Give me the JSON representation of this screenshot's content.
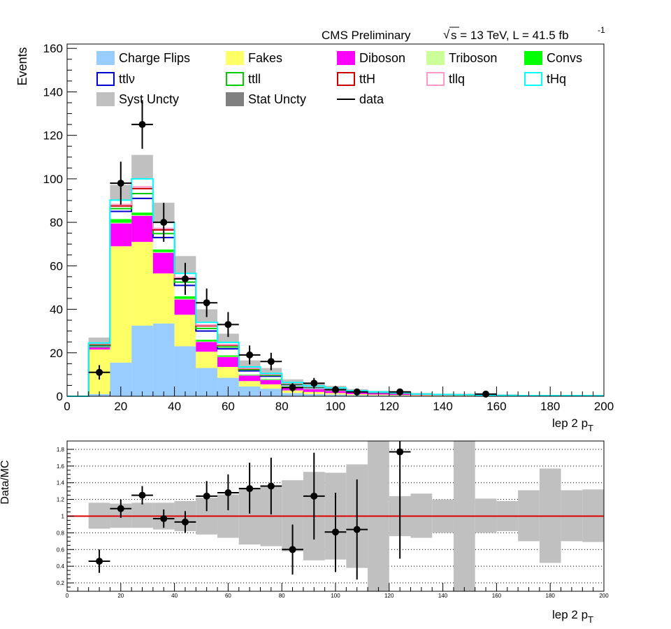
{
  "header": {
    "experiment": "CMS Preliminary",
    "sqrt_symbol": "√",
    "energy_text": "s = 13 TeV, L = 41.5 fb",
    "lumi_exponent": "-1"
  },
  "chart_data": [
    {
      "type": "stacked-histogram",
      "ylabel": "Events",
      "xlabel_main": "lep 2 p",
      "xlabel_sub": "T",
      "xlim": [
        0,
        200
      ],
      "ylim": [
        0,
        162
      ],
      "x_ticks": [
        "0",
        "20",
        "40",
        "60",
        "80",
        "100",
        "120",
        "140",
        "160",
        "180",
        "200"
      ],
      "y_ticks": [
        "0",
        "20",
        "40",
        "60",
        "80",
        "100",
        "120",
        "140",
        "160"
      ],
      "bin_edges": [
        0,
        8,
        16,
        24,
        32,
        40,
        48,
        56,
        64,
        72,
        80,
        88,
        96,
        104,
        112,
        120,
        128,
        136,
        144,
        152,
        160,
        168,
        176,
        184,
        192,
        200
      ],
      "legend": [
        {
          "label": "Charge Flips",
          "style": "fill",
          "color": "#99ccff"
        },
        {
          "label": "Fakes",
          "style": "fill",
          "color": "#ffff66"
        },
        {
          "label": "Diboson",
          "style": "fill",
          "color": "#ff00ff"
        },
        {
          "label": "Triboson",
          "style": "fill",
          "color": "#ccff99"
        },
        {
          "label": "Convs",
          "style": "fill",
          "color": "#00ff00"
        },
        {
          "label": "ttlν",
          "style": "line",
          "color": "#0000cc"
        },
        {
          "label": "ttll",
          "style": "line",
          "color": "#00cc00"
        },
        {
          "label": "ttH",
          "style": "line",
          "color": "#cc0000"
        },
        {
          "label": "tllq",
          "style": "line",
          "color": "#ff99cc"
        },
        {
          "label": "tHq",
          "style": "line",
          "color": "#00ffff"
        },
        {
          "label": "Syst Uncty",
          "style": "fill",
          "color": "#c0c0c0"
        },
        {
          "label": "Stat Uncty",
          "style": "fill",
          "color": "#808080"
        },
        {
          "label": "data",
          "style": "line",
          "color": "#000000"
        }
      ],
      "series": [
        {
          "name": "Charge Flips",
          "color": "#99ccff",
          "values": [
            0,
            1,
            15.5,
            32.5,
            33.5,
            23,
            13,
            8.5,
            4.5,
            3.5,
            1.5,
            1,
            0.8,
            0.5,
            0.4,
            0.3,
            0.2,
            0.2,
            0.1,
            0.1,
            0.1,
            0.1,
            0.1,
            0.1,
            0.1
          ]
        },
        {
          "name": "Fakes",
          "color": "#ffff66",
          "values": [
            0,
            20.5,
            53.5,
            38.5,
            23,
            14.5,
            7.5,
            5,
            2.5,
            2,
            1.2,
            1,
            0.7,
            0.5,
            0.4,
            0.3,
            0.3,
            0.2,
            0.2,
            0.1,
            0.1,
            0.1,
            0.1,
            0.1,
            0.1
          ]
        },
        {
          "name": "Diboson",
          "color": "#ff00ff",
          "values": [
            0,
            1,
            10.5,
            12,
            9.5,
            7,
            4.5,
            4.5,
            2.5,
            2,
            1.5,
            1.3,
            1,
            0.8,
            0.6,
            0.5,
            0.4,
            0.3,
            0.3,
            0.2,
            0.2,
            0.1,
            0.1,
            0.1,
            0.1
          ]
        },
        {
          "name": "Triboson",
          "color": "#ccff99",
          "values": [
            0,
            0,
            0.3,
            0.3,
            0.3,
            0.3,
            0.2,
            0.2,
            0.1,
            0.1,
            0.1,
            0.1,
            0.1,
            0,
            0,
            0,
            0,
            0,
            0,
            0,
            0,
            0,
            0,
            0,
            0
          ]
        },
        {
          "name": "Convs",
          "color": "#00ff00",
          "values": [
            0,
            0.3,
            1.7,
            1.2,
            1.2,
            1.2,
            0.8,
            0.6,
            0.3,
            0.3,
            0.2,
            0.1,
            0.1,
            0.1,
            0.1,
            0,
            0,
            0,
            0,
            0,
            0,
            0,
            0,
            0,
            0
          ]
        },
        {
          "name": "ttlν",
          "color": "#0000cc",
          "values": [
            0,
            0.5,
            3.5,
            6.5,
            5.5,
            5,
            4,
            3,
            1.8,
            1.3,
            0.8,
            0.5,
            0.4,
            0.3,
            0.2,
            0.2,
            0.1,
            0.1,
            0.1,
            0.1,
            0,
            0,
            0,
            0,
            0
          ]
        },
        {
          "name": "ttll",
          "color": "#00cc00",
          "values": [
            0,
            0.3,
            1.3,
            2.2,
            1.8,
            1.5,
            1.2,
            0.9,
            0.5,
            0.4,
            0.3,
            0.2,
            0.2,
            0.1,
            0.1,
            0.1,
            0,
            0,
            0,
            0,
            0,
            0,
            0,
            0,
            0
          ]
        },
        {
          "name": "ttH",
          "color": "#cc0000",
          "values": [
            0,
            0.4,
            1.2,
            2.3,
            1.7,
            1.5,
            1.2,
            0.8,
            0.5,
            0.4,
            0.3,
            0.2,
            0.2,
            0.1,
            0.1,
            0.1,
            0,
            0,
            0,
            0,
            0,
            0,
            0,
            0,
            0
          ]
        },
        {
          "name": "tllq",
          "color": "#ff99cc",
          "values": [
            0,
            0.2,
            0.7,
            0.8,
            0.7,
            0.6,
            0.4,
            0.3,
            0.2,
            0.1,
            0.1,
            0.1,
            0.1,
            0,
            0,
            0,
            0,
            0,
            0,
            0,
            0,
            0,
            0,
            0,
            0
          ]
        },
        {
          "name": "tHq",
          "color": "#00ffff",
          "values": [
            0,
            0.3,
            2,
            3.7,
            2.8,
            1.9,
            1.2,
            1,
            0.6,
            0.4,
            0.3,
            0.2,
            0.2,
            0.1,
            0.1,
            0.1,
            0,
            0,
            0,
            0,
            0,
            0,
            0,
            0,
            0
          ]
        }
      ],
      "syst_uncertainty": [
        0,
        2.5,
        7,
        11,
        9,
        8,
        6,
        4,
        3,
        2.5,
        1.5,
        1.2,
        1,
        0.8,
        0.5,
        0.5,
        0.4,
        0.4,
        0.3,
        0.2,
        0.2,
        0.2,
        0.2,
        0.2,
        0.2
      ],
      "data": {
        "x": [
          12,
          20,
          28,
          36,
          44,
          52,
          60,
          68,
          76,
          84,
          92,
          100,
          108,
          124,
          156
        ],
        "y": [
          11,
          98,
          125,
          80,
          54,
          43,
          33,
          19,
          16,
          4,
          6,
          3,
          2,
          2,
          1
        ],
        "xerr": 4
      }
    },
    {
      "type": "ratio",
      "ylabel": "Data/MC",
      "xlabel_main": "lep 2 p",
      "xlabel_sub": "T",
      "xlim": [
        0,
        200
      ],
      "ylim": [
        0.1,
        1.9
      ],
      "x_ticks": [
        "0",
        "20",
        "40",
        "60",
        "80",
        "100",
        "120",
        "140",
        "160",
        "180",
        "200"
      ],
      "y_ticks": [
        "0.2",
        "0.4",
        "0.6",
        "0.8",
        "1",
        "1.2",
        "1.4",
        "1.6",
        "1.8"
      ],
      "reference_line": 1,
      "reference_color": "#dd0000",
      "band_low": [
        null,
        0.85,
        0.86,
        0.86,
        0.84,
        0.82,
        0.78,
        0.74,
        0.66,
        0.64,
        0.58,
        0.47,
        0.48,
        0.38,
        0.1,
        0.76,
        0.74,
        0.8,
        0.1,
        0.8,
        0.82,
        0.7,
        0.44,
        0.7,
        0.69
      ],
      "band_high": [
        null,
        1.16,
        1.15,
        1.16,
        1.16,
        1.18,
        1.22,
        1.26,
        1.34,
        1.36,
        1.43,
        1.53,
        1.52,
        1.62,
        1.9,
        1.24,
        1.27,
        1.2,
        1.9,
        1.21,
        1.18,
        1.31,
        1.57,
        1.31,
        1.32
      ],
      "points": {
        "x": [
          12,
          20,
          28,
          36,
          44,
          52,
          60,
          68,
          76,
          84,
          92,
          100,
          108,
          124
        ],
        "y": [
          0.46,
          1.09,
          1.25,
          0.97,
          0.93,
          1.24,
          1.28,
          1.33,
          1.36,
          0.6,
          1.24,
          0.81,
          0.84,
          1.77
        ],
        "err_low": [
          0.14,
          0.11,
          0.11,
          0.11,
          0.13,
          0.18,
          0.21,
          0.3,
          0.34,
          0.3,
          0.52,
          0.48,
          0.6,
          1.28
        ],
        "err_high": [
          0.14,
          0.11,
          0.11,
          0.11,
          0.13,
          0.18,
          0.22,
          0.31,
          0.34,
          0.3,
          0.52,
          0.47,
          0.6,
          0.13
        ],
        "xerr": 4
      }
    }
  ]
}
